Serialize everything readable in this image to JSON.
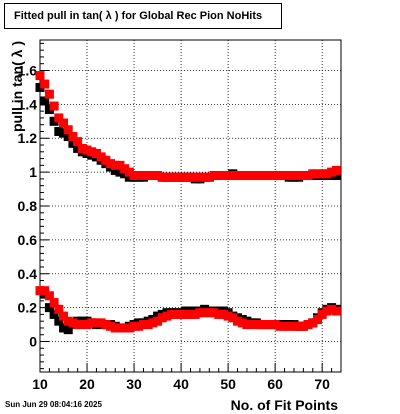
{
  "chart_data": {
    "type": "scatter",
    "title": "Fitted pull in tan( λ ) for Global Rec Pion NoHits",
    "xlabel": "No. of Fit Points",
    "ylabel": "pull in tan( λ )",
    "xlim": [
      10,
      74
    ],
    "ylim": [
      -0.18,
      1.78
    ],
    "x_ticks": [
      10,
      20,
      30,
      40,
      50,
      60,
      70
    ],
    "x_tick_labels": [
      "10",
      "20",
      "30",
      "40",
      "50",
      "60",
      "70"
    ],
    "y_ticks": [
      0,
      0.2,
      0.4,
      0.6,
      0.8,
      1,
      1.2,
      1.4,
      1.6
    ],
    "y_tick_labels": [
      "0",
      "0.2",
      "0.4",
      "0.6",
      "0.8",
      "1",
      "1.2",
      "1.4",
      "1.6"
    ],
    "grid": true,
    "series": [
      {
        "color": "#000000",
        "marker": "square",
        "points": [
          [
            10,
            1.5
          ],
          [
            11,
            1.42
          ],
          [
            12,
            1.37
          ],
          [
            13,
            1.3
          ],
          [
            14,
            1.24
          ],
          [
            15,
            1.23
          ],
          [
            16,
            1.21
          ],
          [
            17,
            1.17
          ],
          [
            18,
            1.14
          ],
          [
            19,
            1.12
          ],
          [
            20,
            1.11
          ],
          [
            21,
            1.1
          ],
          [
            22,
            1.09
          ],
          [
            23,
            1.07
          ],
          [
            24,
            1.05
          ],
          [
            25,
            1.03
          ],
          [
            26,
            1.01
          ],
          [
            27,
            1.0
          ],
          [
            28,
            0.99
          ],
          [
            29,
            0.97
          ],
          [
            30,
            0.97
          ],
          [
            31,
            0.97
          ],
          [
            32,
            0.97
          ],
          [
            33,
            0.98
          ],
          [
            34,
            0.98
          ],
          [
            35,
            0.98
          ],
          [
            36,
            0.97
          ],
          [
            37,
            0.97
          ],
          [
            38,
            0.97
          ],
          [
            39,
            0.97
          ],
          [
            40,
            0.97
          ],
          [
            41,
            0.97
          ],
          [
            42,
            0.97
          ],
          [
            43,
            0.96
          ],
          [
            44,
            0.96
          ],
          [
            45,
            0.97
          ],
          [
            46,
            0.97
          ],
          [
            47,
            0.98
          ],
          [
            48,
            0.98
          ],
          [
            49,
            0.98
          ],
          [
            50,
            0.98
          ],
          [
            51,
            0.99
          ],
          [
            52,
            0.98
          ],
          [
            53,
            0.98
          ],
          [
            54,
            0.98
          ],
          [
            55,
            0.98
          ],
          [
            56,
            0.98
          ],
          [
            57,
            0.98
          ],
          [
            58,
            0.98
          ],
          [
            59,
            0.98
          ],
          [
            60,
            0.98
          ],
          [
            61,
            0.98
          ],
          [
            62,
            0.98
          ],
          [
            63,
            0.97
          ],
          [
            64,
            0.97
          ],
          [
            65,
            0.97
          ],
          [
            66,
            0.98
          ],
          [
            67,
            0.98
          ],
          [
            68,
            0.98
          ],
          [
            69,
            0.98
          ],
          [
            70,
            0.98
          ],
          [
            71,
            0.98
          ],
          [
            72,
            0.98
          ],
          [
            73,
            0.98
          ],
          [
            11,
            0.28
          ],
          [
            12,
            0.2
          ],
          [
            13,
            0.16
          ],
          [
            14,
            0.12
          ],
          [
            15,
            0.08
          ],
          [
            16,
            0.07
          ],
          [
            17,
            0.1
          ],
          [
            18,
            0.12
          ],
          [
            19,
            0.12
          ],
          [
            20,
            0.12
          ],
          [
            21,
            0.11
          ],
          [
            22,
            0.1
          ],
          [
            23,
            0.1
          ],
          [
            24,
            0.1
          ],
          [
            25,
            0.1
          ],
          [
            26,
            0.09
          ],
          [
            27,
            0.08
          ],
          [
            28,
            0.08
          ],
          [
            29,
            0.09
          ],
          [
            30,
            0.1
          ],
          [
            31,
            0.11
          ],
          [
            32,
            0.11
          ],
          [
            33,
            0.12
          ],
          [
            34,
            0.13
          ],
          [
            35,
            0.15
          ],
          [
            36,
            0.16
          ],
          [
            37,
            0.17
          ],
          [
            38,
            0.17
          ],
          [
            39,
            0.17
          ],
          [
            40,
            0.17
          ],
          [
            41,
            0.18
          ],
          [
            42,
            0.18
          ],
          [
            43,
            0.18
          ],
          [
            44,
            0.18
          ],
          [
            45,
            0.19
          ],
          [
            46,
            0.18
          ],
          [
            47,
            0.18
          ],
          [
            48,
            0.18
          ],
          [
            49,
            0.18
          ],
          [
            50,
            0.17
          ],
          [
            51,
            0.15
          ],
          [
            52,
            0.14
          ],
          [
            53,
            0.13
          ],
          [
            54,
            0.12
          ],
          [
            55,
            0.11
          ],
          [
            56,
            0.11
          ],
          [
            57,
            0.1
          ],
          [
            58,
            0.1
          ],
          [
            59,
            0.1
          ],
          [
            60,
            0.1
          ],
          [
            61,
            0.1
          ],
          [
            62,
            0.1
          ],
          [
            63,
            0.1
          ],
          [
            64,
            0.1
          ],
          [
            65,
            0.09
          ],
          [
            66,
            0.09
          ],
          [
            67,
            0.1
          ],
          [
            68,
            0.11
          ],
          [
            69,
            0.14
          ],
          [
            70,
            0.17
          ],
          [
            71,
            0.19
          ],
          [
            72,
            0.2
          ],
          [
            73,
            0.19
          ]
        ]
      },
      {
        "color": "#ff0000",
        "marker": "square",
        "points": [
          [
            10,
            1.57
          ],
          [
            11,
            1.52
          ],
          [
            12,
            1.46
          ],
          [
            13,
            1.39
          ],
          [
            14,
            1.32
          ],
          [
            15,
            1.29
          ],
          [
            16,
            1.25
          ],
          [
            17,
            1.21
          ],
          [
            18,
            1.18
          ],
          [
            19,
            1.14
          ],
          [
            20,
            1.13
          ],
          [
            21,
            1.12
          ],
          [
            22,
            1.11
          ],
          [
            23,
            1.09
          ],
          [
            24,
            1.07
          ],
          [
            25,
            1.05
          ],
          [
            26,
            1.04
          ],
          [
            27,
            1.04
          ],
          [
            28,
            1.02
          ],
          [
            29,
            1.0
          ],
          [
            30,
            0.98
          ],
          [
            31,
            0.98
          ],
          [
            32,
            0.98
          ],
          [
            33,
            0.98
          ],
          [
            34,
            0.98
          ],
          [
            35,
            0.98
          ],
          [
            36,
            0.97
          ],
          [
            37,
            0.97
          ],
          [
            38,
            0.97
          ],
          [
            39,
            0.97
          ],
          [
            40,
            0.97
          ],
          [
            41,
            0.97
          ],
          [
            42,
            0.97
          ],
          [
            43,
            0.97
          ],
          [
            44,
            0.97
          ],
          [
            45,
            0.97
          ],
          [
            46,
            0.97
          ],
          [
            47,
            0.98
          ],
          [
            48,
            0.98
          ],
          [
            49,
            0.98
          ],
          [
            50,
            0.98
          ],
          [
            51,
            0.98
          ],
          [
            52,
            0.98
          ],
          [
            53,
            0.98
          ],
          [
            54,
            0.98
          ],
          [
            55,
            0.98
          ],
          [
            56,
            0.98
          ],
          [
            57,
            0.98
          ],
          [
            58,
            0.98
          ],
          [
            59,
            0.98
          ],
          [
            60,
            0.98
          ],
          [
            61,
            0.98
          ],
          [
            62,
            0.98
          ],
          [
            63,
            0.98
          ],
          [
            64,
            0.98
          ],
          [
            65,
            0.98
          ],
          [
            66,
            0.98
          ],
          [
            67,
            0.98
          ],
          [
            68,
            0.99
          ],
          [
            69,
            0.99
          ],
          [
            70,
            0.99
          ],
          [
            71,
            0.99
          ],
          [
            72,
            1.0
          ],
          [
            73,
            1.01
          ],
          [
            10,
            0.3
          ],
          [
            11,
            0.3
          ],
          [
            12,
            0.27
          ],
          [
            13,
            0.23
          ],
          [
            14,
            0.19
          ],
          [
            15,
            0.15
          ],
          [
            16,
            0.12
          ],
          [
            17,
            0.11
          ],
          [
            18,
            0.1
          ],
          [
            19,
            0.1
          ],
          [
            20,
            0.1
          ],
          [
            21,
            0.11
          ],
          [
            22,
            0.11
          ],
          [
            23,
            0.11
          ],
          [
            24,
            0.1
          ],
          [
            25,
            0.09
          ],
          [
            26,
            0.08
          ],
          [
            27,
            0.08
          ],
          [
            28,
            0.08
          ],
          [
            29,
            0.08
          ],
          [
            30,
            0.09
          ],
          [
            31,
            0.09
          ],
          [
            32,
            0.1
          ],
          [
            33,
            0.1
          ],
          [
            34,
            0.11
          ],
          [
            35,
            0.12
          ],
          [
            36,
            0.14
          ],
          [
            37,
            0.15
          ],
          [
            38,
            0.16
          ],
          [
            39,
            0.16
          ],
          [
            40,
            0.16
          ],
          [
            41,
            0.16
          ],
          [
            42,
            0.16
          ],
          [
            43,
            0.16
          ],
          [
            44,
            0.17
          ],
          [
            45,
            0.17
          ],
          [
            46,
            0.17
          ],
          [
            47,
            0.17
          ],
          [
            48,
            0.16
          ],
          [
            49,
            0.16
          ],
          [
            50,
            0.15
          ],
          [
            51,
            0.14
          ],
          [
            52,
            0.12
          ],
          [
            53,
            0.11
          ],
          [
            54,
            0.1
          ],
          [
            55,
            0.1
          ],
          [
            56,
            0.1
          ],
          [
            57,
            0.1
          ],
          [
            58,
            0.1
          ],
          [
            59,
            0.1
          ],
          [
            60,
            0.1
          ],
          [
            61,
            0.09
          ],
          [
            62,
            0.09
          ],
          [
            63,
            0.09
          ],
          [
            64,
            0.09
          ],
          [
            65,
            0.09
          ],
          [
            66,
            0.09
          ],
          [
            67,
            0.1
          ],
          [
            68,
            0.11
          ],
          [
            69,
            0.13
          ],
          [
            70,
            0.16
          ],
          [
            71,
            0.18
          ],
          [
            72,
            0.19
          ],
          [
            73,
            0.18
          ]
        ]
      }
    ]
  },
  "footer": {
    "date": "Sun Jun 29 08:04:16 2025"
  }
}
